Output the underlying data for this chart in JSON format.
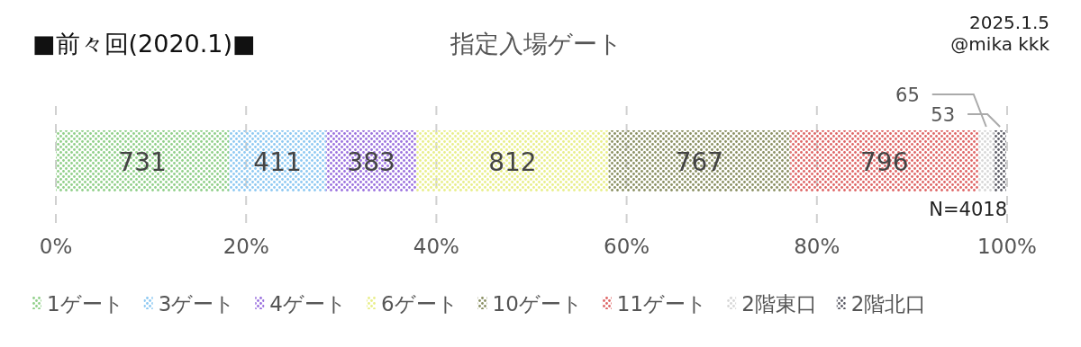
{
  "chart_data": {
    "type": "bar",
    "orientation": "horizontal",
    "stacked": true,
    "title": "■前々回(2020.1)■",
    "subtitle": "指定入場ゲート",
    "annotations": [
      "2025.1.5",
      "@mika kkk",
      "N=4018",
      "731",
      "411",
      "383",
      "812",
      "767",
      "796",
      "65",
      "53"
    ],
    "categories": [
      null
    ],
    "series": [
      {
        "name": "1ゲート",
        "color": "#8fcf88",
        "values": [
          18.2
        ]
      },
      {
        "name": "3ゲート",
        "color": "#8cc8f2",
        "values": [
          10.2
        ]
      },
      {
        "name": "4ゲート",
        "color": "#9a70de",
        "values": [
          9.5
        ]
      },
      {
        "name": "6ゲート",
        "color": "#e8ee88",
        "values": [
          20.2
        ]
      },
      {
        "name": "10ゲート",
        "color": "#8a8f62",
        "values": [
          19.1
        ]
      },
      {
        "name": "11ゲート",
        "color": "#de6464",
        "values": [
          19.8
        ]
      },
      {
        "name": "2階東口",
        "color": "#d6d6d6",
        "values": [
          1.6
        ]
      },
      {
        "name": "2階北口",
        "color": "#5a5a64",
        "values": [
          1.3
        ]
      }
    ],
    "xlim": [
      0,
      100
    ],
    "xticks": [
      {
        "value": 0,
        "label": "0%"
      },
      {
        "value": 20,
        "label": "20%"
      },
      {
        "value": 40,
        "label": "40%"
      },
      {
        "value": 60,
        "label": "60%"
      },
      {
        "value": 80,
        "label": "80%"
      },
      {
        "value": 100,
        "label": "100%"
      }
    ],
    "grid": "x",
    "legend": "bottom"
  }
}
